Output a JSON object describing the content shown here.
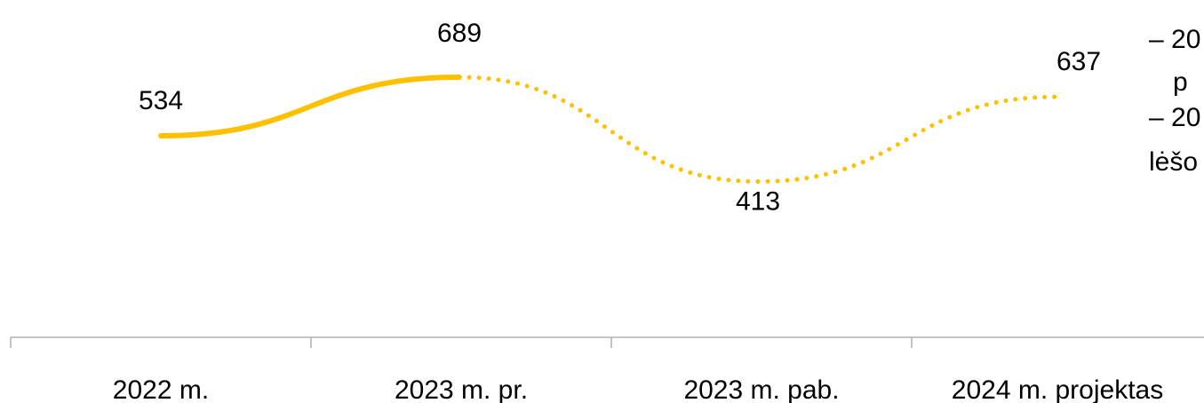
{
  "chart_data": {
    "type": "line",
    "categories": [
      "2022 m.",
      "2023 m. pr.",
      "2023 m. pab.",
      "2024 m. projektas"
    ],
    "series": [
      {
        "values": [
          534,
          689,
          413,
          637
        ],
        "color": "#FFC000",
        "solid_segments": 1,
        "dotted_segments": 2
      }
    ],
    "data_labels": [
      "534",
      "689",
      "413",
      "637"
    ],
    "grid": false,
    "legend": "none"
  },
  "side_note": {
    "lines": [
      "– 20",
      "p",
      "– 20",
      "lėšo"
    ]
  }
}
